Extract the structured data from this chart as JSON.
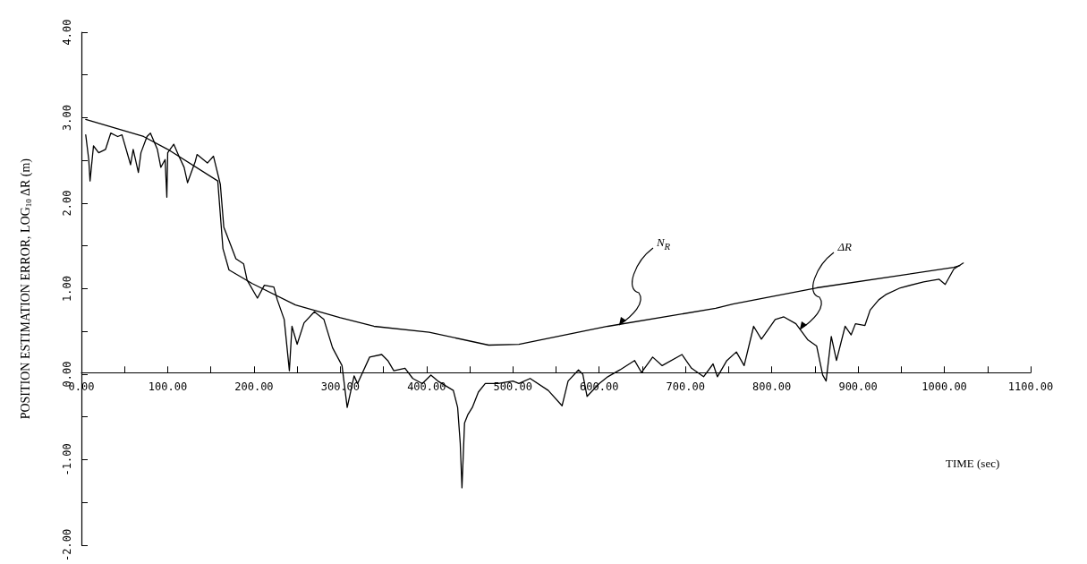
{
  "chart_data": {
    "type": "line",
    "xlabel": "TIME (sec)",
    "ylabel": "POSITION ESTIMATION ERROR, LOG$_{10}$ ΔR (m)",
    "xlim": [
      0,
      1100
    ],
    "ylim": [
      -2,
      4
    ],
    "xticks": [
      {
        "value": 0,
        "label": "0.00"
      },
      {
        "value": 50,
        "label": null
      },
      {
        "value": 100,
        "label": "100.00"
      },
      {
        "value": 150,
        "label": null
      },
      {
        "value": 200,
        "label": "200.00"
      },
      {
        "value": 250,
        "label": null
      },
      {
        "value": 300,
        "label": "300.00"
      },
      {
        "value": 350,
        "label": null
      },
      {
        "value": 400,
        "label": "400.00"
      },
      {
        "value": 450,
        "label": null
      },
      {
        "value": 500,
        "label": "500.00"
      },
      {
        "value": 550,
        "label": null
      },
      {
        "value": 600,
        "label": "600.00"
      },
      {
        "value": 650,
        "label": null
      },
      {
        "value": 700,
        "label": "700.00"
      },
      {
        "value": 750,
        "label": null
      },
      {
        "value": 800,
        "label": "800.00"
      },
      {
        "value": 850,
        "label": null
      },
      {
        "value": 900,
        "label": "900.00"
      },
      {
        "value": 950,
        "label": null
      },
      {
        "value": 1000,
        "label": "1000.00"
      },
      {
        "value": 1050,
        "label": null
      },
      {
        "value": 1100,
        "label": "1100.00"
      }
    ],
    "yticks": [
      {
        "value": -2,
        "label": "-2.00"
      },
      {
        "value": -1.5,
        "label": null
      },
      {
        "value": -1,
        "label": "-1.00"
      },
      {
        "value": -0.5,
        "label": null
      },
      {
        "value": 0,
        "label": "0.00"
      },
      {
        "value": 0.5,
        "label": null
      },
      {
        "value": 1,
        "label": "1.00"
      },
      {
        "value": 1.5,
        "label": null
      },
      {
        "value": 2,
        "label": "2.00"
      },
      {
        "value": 2.5,
        "label": null
      },
      {
        "value": 3,
        "label": "3.00"
      },
      {
        "value": 3.5,
        "label": null
      },
      {
        "value": 4,
        "label": "4.00"
      }
    ],
    "grid": false,
    "marker": "none",
    "line_style": "solid",
    "series": [
      {
        "color": "#000000",
        "x": [
          5,
          72,
          100,
          158,
          164,
          171,
          198,
          248,
          300,
          339,
          403,
          472,
          507,
          610,
          735,
          755,
          852,
          1011,
          1018
        ],
        "values": [
          2.98,
          2.78,
          2.63,
          2.26,
          1.47,
          1.22,
          1.06,
          0.81,
          0.66,
          0.56,
          0.49,
          0.34,
          0.35,
          0.56,
          0.77,
          0.82,
          1.01,
          1.25,
          1.27
        ]
      },
      {
        "color": "#000000",
        "x": [
          5,
          8.5,
          10,
          14,
          20,
          28,
          34,
          42,
          47,
          57,
          60,
          66,
          69,
          76,
          80,
          88,
          92,
          97,
          99,
          100,
          107,
          113,
          119,
          123,
          132,
          134,
          146,
          153,
          161,
          165,
          173,
          179,
          188,
          192,
          204,
          212,
          223,
          227,
          235,
          241,
          244,
          250,
          258,
          270,
          281,
          291,
          302,
          308,
          316,
          320,
          334,
          348,
          355,
          362,
          375,
          384,
          395,
          405,
          413,
          431,
          436,
          439,
          441,
          444,
          448,
          453,
          460,
          468,
          483,
          500,
          507,
          520,
          541,
          557,
          564,
          576,
          581,
          586,
          600,
          610,
          624,
          641,
          649,
          662,
          673,
          696,
          707,
          721,
          732,
          737,
          748,
          759,
          768,
          779,
          788,
          804,
          814,
          828,
          842,
          852,
          859,
          863,
          869,
          875,
          885,
          892,
          897,
          908,
          914,
          924,
          932,
          949,
          976,
          994,
          1001,
          1011,
          1022
        ],
        "values": [
          2.8,
          2.51,
          2.26,
          2.67,
          2.59,
          2.63,
          2.82,
          2.78,
          2.8,
          2.45,
          2.63,
          2.36,
          2.59,
          2.78,
          2.82,
          2.63,
          2.42,
          2.51,
          2.07,
          2.59,
          2.69,
          2.55,
          2.42,
          2.24,
          2.49,
          2.57,
          2.47,
          2.55,
          2.22,
          1.72,
          1.51,
          1.35,
          1.29,
          1.1,
          0.89,
          1.04,
          1.02,
          0.87,
          0.64,
          0.04,
          0.56,
          0.35,
          0.6,
          0.73,
          0.64,
          0.31,
          0.1,
          -0.39,
          -0.02,
          -0.11,
          0.2,
          0.23,
          0.16,
          0.04,
          0.07,
          -0.05,
          -0.11,
          -0.01,
          -0.08,
          -0.19,
          -0.39,
          -0.81,
          -1.33,
          -0.57,
          -0.47,
          -0.39,
          -0.21,
          -0.11,
          -0.11,
          -0.08,
          -0.11,
          -0.05,
          -0.19,
          -0.37,
          -0.08,
          0.05,
          0.0,
          -0.26,
          -0.11,
          -0.03,
          0.05,
          0.16,
          0.02,
          0.2,
          0.1,
          0.23,
          0.07,
          -0.03,
          0.12,
          -0.03,
          0.16,
          0.26,
          0.1,
          0.56,
          0.41,
          0.64,
          0.67,
          0.59,
          0.4,
          0.33,
          -0.01,
          -0.08,
          0.44,
          0.16,
          0.56,
          0.46,
          0.59,
          0.57,
          0.75,
          0.87,
          0.93,
          1.01,
          1.08,
          1.11,
          1.05,
          1.23,
          1.3
        ]
      }
    ],
    "annotations": [
      {
        "text": "N$_{R}$",
        "x": 623,
        "y": 0.58
      },
      {
        "text": "ΔR",
        "x": 833,
        "y": 0.52
      }
    ]
  }
}
